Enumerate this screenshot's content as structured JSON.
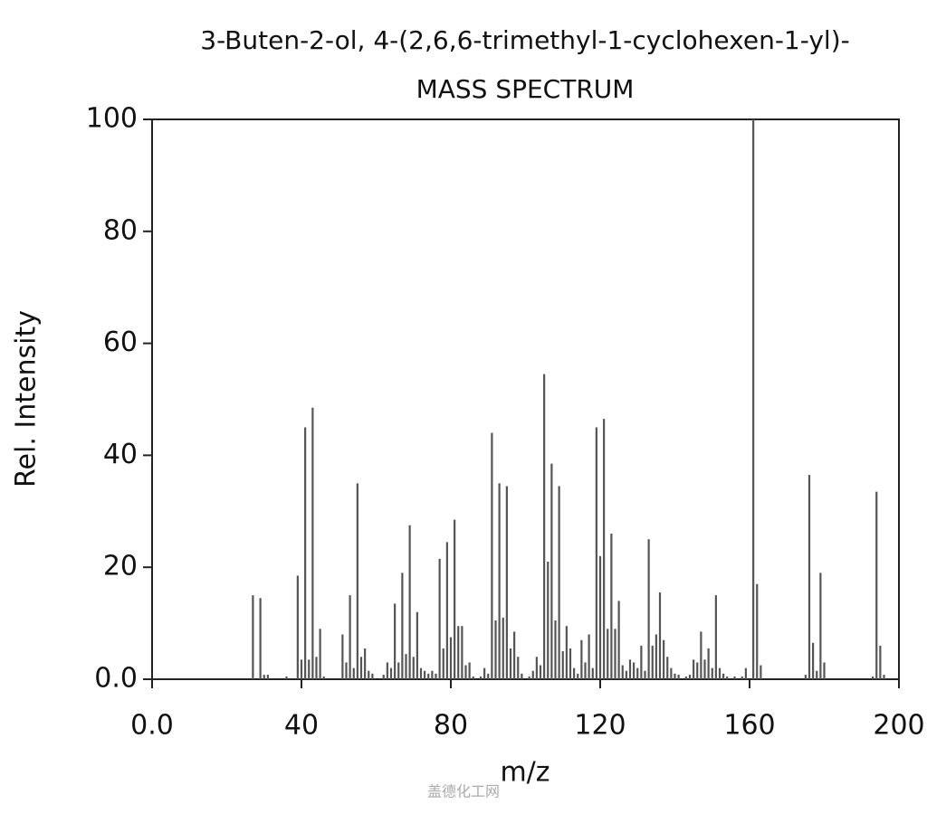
{
  "chart_data": {
    "type": "bar",
    "title": "3-Buten-2-ol, 4-(2,6,6-trimethyl-1-cyclohexen-1-yl)-",
    "subtitle": "MASS SPECTRUM",
    "x_label": "m/z",
    "y_label": "Rel. Intensity",
    "watermark": "盖德化工网",
    "color": "#555555",
    "x": [
      27,
      29,
      30,
      31,
      36,
      39,
      40,
      41,
      42,
      43,
      44,
      45,
      46,
      51,
      52,
      53,
      54,
      55,
      56,
      57,
      58,
      59,
      62,
      63,
      64,
      65,
      66,
      67,
      68,
      69,
      70,
      71,
      72,
      73,
      74,
      75,
      76,
      77,
      78,
      79,
      80,
      81,
      82,
      83,
      84,
      85,
      86,
      88,
      89,
      90,
      91,
      92,
      93,
      94,
      95,
      96,
      97,
      98,
      99,
      101,
      102,
      103,
      104,
      105,
      106,
      107,
      108,
      109,
      110,
      111,
      112,
      113,
      114,
      115,
      116,
      117,
      118,
      119,
      120,
      121,
      122,
      123,
      124,
      125,
      126,
      127,
      128,
      129,
      130,
      131,
      132,
      133,
      134,
      135,
      136,
      137,
      138,
      139,
      140,
      141,
      143,
      144,
      145,
      146,
      147,
      148,
      149,
      150,
      151,
      152,
      153,
      154,
      156,
      158,
      159,
      161,
      162,
      163,
      175,
      176,
      177,
      178,
      179,
      180,
      193,
      194,
      195,
      196
    ],
    "values": [
      15,
      14.5,
      0.8,
      0.8,
      0.5,
      18.5,
      3.5,
      45,
      3.5,
      48.5,
      4,
      9,
      0.5,
      8,
      3,
      15,
      2,
      35,
      4,
      5.5,
      1.5,
      1,
      0.8,
      3,
      2,
      13.5,
      3,
      19,
      4.5,
      27.5,
      4,
      12,
      2,
      1.5,
      1,
      1.5,
      1,
      21.5,
      5.5,
      24.5,
      7.5,
      28.5,
      9.5,
      9.5,
      2.5,
      3,
      0.5,
      0.5,
      2,
      1,
      44,
      10.5,
      35,
      11,
      34.5,
      5.5,
      8.5,
      4,
      1,
      0.5,
      1.5,
      4,
      2.5,
      54.5,
      21,
      38.5,
      10.5,
      34.5,
      5,
      9.5,
      5.5,
      2,
      1,
      7,
      3,
      8,
      2,
      45,
      22,
      46.5,
      9,
      26,
      9,
      14,
      2.5,
      1.5,
      3.5,
      3,
      2,
      6,
      1.5,
      25,
      6,
      8,
      15.5,
      7,
      4,
      2,
      1,
      0.8,
      0.5,
      0.8,
      3.5,
      3,
      8.5,
      3.5,
      5.5,
      2,
      15,
      2,
      1,
      0.5,
      0.5,
      0.5,
      2,
      100,
      17,
      2.5,
      0.8,
      36.5,
      6.5,
      1.5,
      19,
      3,
      0.5,
      33.5,
      6,
      0.8
    ],
    "xlim": [
      0,
      200
    ],
    "xticks": [
      {
        "value": 0,
        "label": "0.0"
      },
      40,
      80,
      120,
      160,
      200
    ],
    "ylim": [
      0,
      100
    ],
    "yticks": [
      {
        "value": 0,
        "label": "0.0"
      },
      20,
      40,
      60,
      80,
      100
    ]
  }
}
